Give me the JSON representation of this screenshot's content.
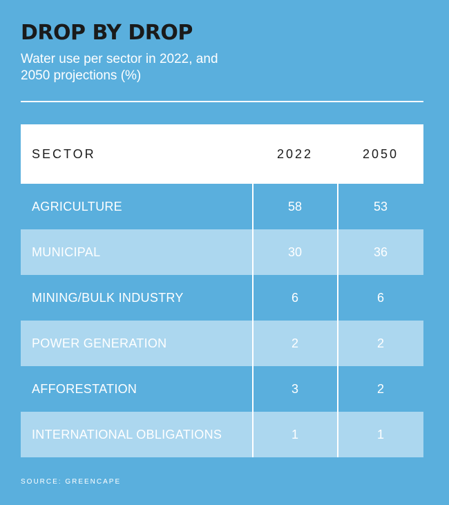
{
  "title": "DROP BY DROP",
  "subtitle": "Water use per sector in 2022, and 2050 projections (%)",
  "source": "SOURCE: GREENCAPE",
  "colors": {
    "background": "#5aafdd",
    "stripe": "#acd7ef",
    "header_bg": "#ffffff",
    "title": "#1a1a1a"
  },
  "chart_data": {
    "type": "table",
    "columns": [
      "SECTOR",
      "2022",
      "2050"
    ],
    "rows": [
      {
        "sector": "AGRICULTURE",
        "v2022": "58",
        "v2050": "53"
      },
      {
        "sector": "MUNICIPAL",
        "v2022": "30",
        "v2050": "36"
      },
      {
        "sector": "MINING/BULK INDUSTRY",
        "v2022": "6",
        "v2050": "6"
      },
      {
        "sector": "POWER GENERATION",
        "v2022": "2",
        "v2050": "2"
      },
      {
        "sector": "AFFORESTATION",
        "v2022": "3",
        "v2050": "2"
      },
      {
        "sector": "INTERNATIONAL OBLIGATIONS",
        "v2022": "1",
        "v2050": "1"
      }
    ]
  }
}
